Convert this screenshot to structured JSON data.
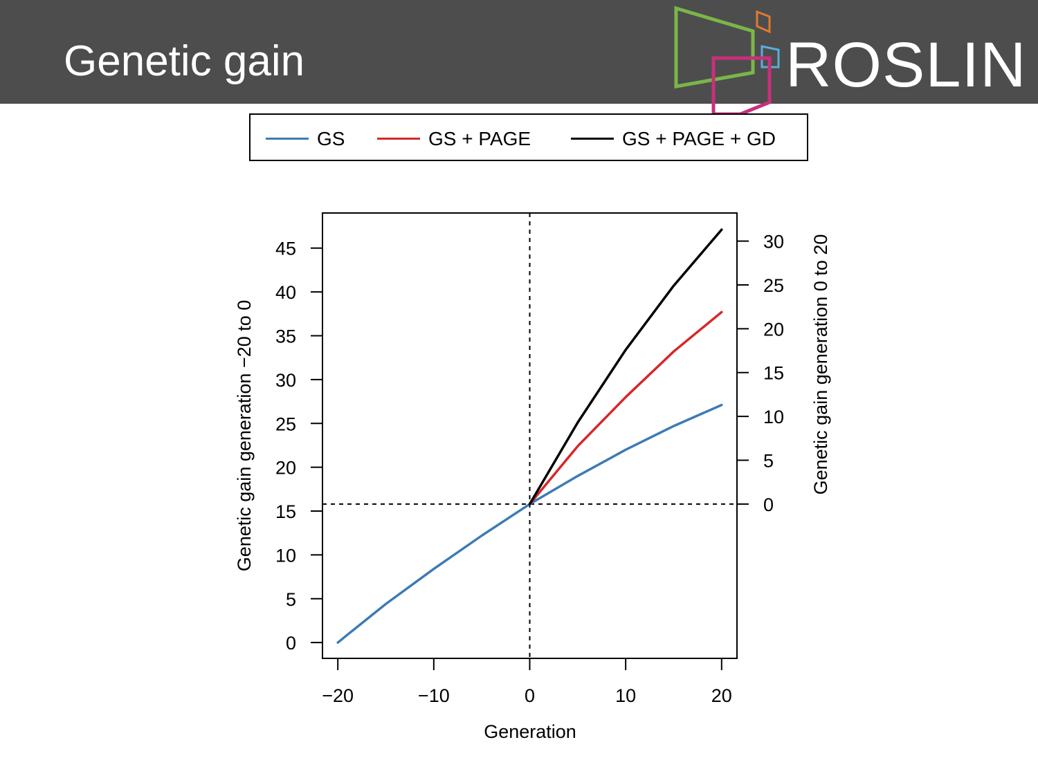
{
  "slide": {
    "title": "Genetic gain",
    "logo_text": "ROSLIN"
  },
  "colors": {
    "header_bg": "#4d4d4d",
    "series_gs": "#3b7bb5",
    "series_gs_page": "#d62728",
    "series_gs_page_gd": "#000000"
  },
  "chart_data": {
    "type": "line",
    "title": "",
    "xlabel": "Generation",
    "ylabel_left": "Genetic gain generation −20 to 0",
    "ylabel_right": "Genetic gain generation 0 to 20",
    "xlim": [
      -21.6,
      21.6
    ],
    "ylim_left": [
      -1.8,
      49.0
    ],
    "ylim_right": [
      -17.6,
      33.2
    ],
    "x_ticks": [
      -20,
      -10,
      0,
      10,
      20
    ],
    "x_tick_labels": [
      "−20",
      "−10",
      "0",
      "10",
      "20"
    ],
    "y_left_ticks": [
      0,
      5,
      10,
      15,
      20,
      25,
      30,
      35,
      40,
      45
    ],
    "y_right_ticks": [
      0,
      5,
      10,
      15,
      20,
      25,
      30
    ],
    "reference_lines": {
      "vertical_x": 0,
      "horizontal_y_left": 15.8
    },
    "legend_position": "top",
    "series": [
      {
        "name": "GS",
        "axis": "left",
        "x": [
          -20,
          -19,
          -15,
          -10,
          -5,
          0,
          5,
          10,
          15,
          20
        ],
        "y": [
          0,
          0.9,
          4.4,
          8.4,
          12.2,
          15.8,
          19.0,
          22.0,
          24.7,
          27.1
        ]
      },
      {
        "name": "GS + PAGE",
        "axis": "right",
        "x": [
          0,
          5,
          10,
          15,
          20
        ],
        "y": [
          0,
          6.6,
          12.2,
          17.4,
          21.9
        ]
      },
      {
        "name": "GS + PAGE + GD",
        "axis": "right",
        "x": [
          0,
          5,
          10,
          15,
          20
        ],
        "y": [
          0,
          9.3,
          17.6,
          24.9,
          31.3
        ]
      }
    ]
  }
}
